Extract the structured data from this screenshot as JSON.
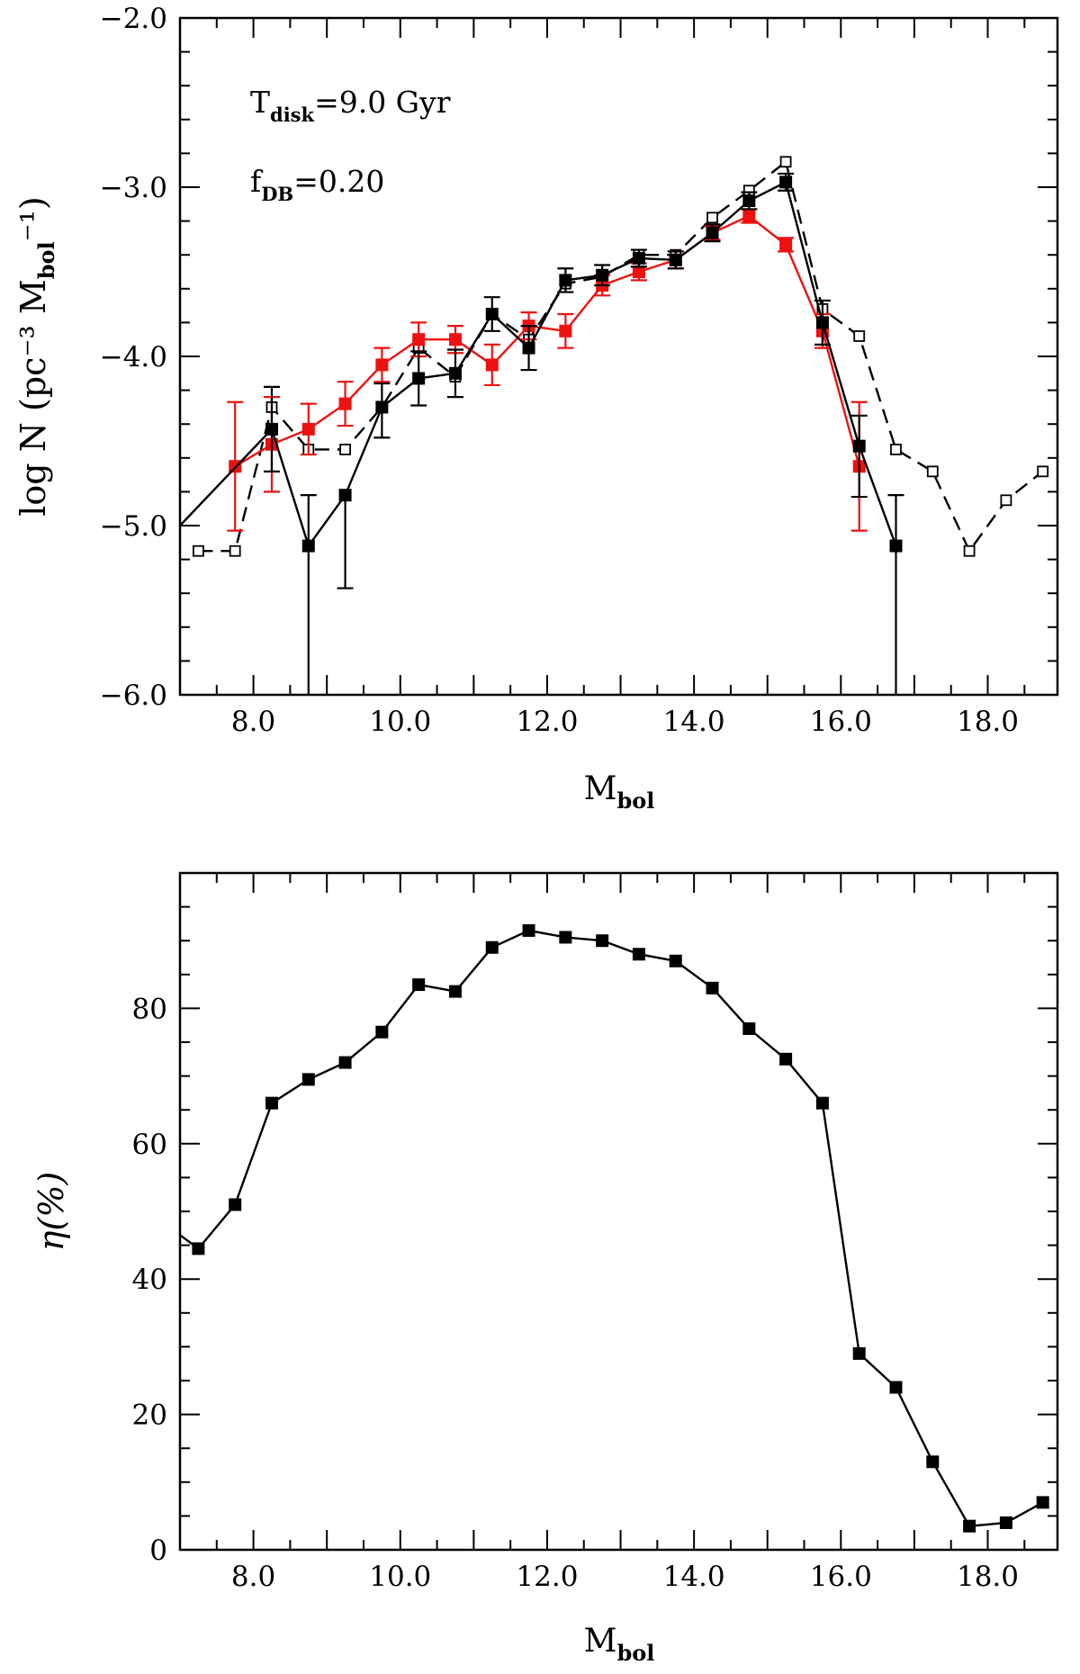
{
  "chart_data": [
    {
      "type": "line",
      "panel": "top",
      "xlabel": "M",
      "xlabel_sub": "bol",
      "ylabel": "log N (pc⁻³ M",
      "ylabel_sub": "bol",
      "ylabel_tail": "⁻¹)",
      "xlim": [
        7.0,
        18.95
      ],
      "ylim": [
        -6.0,
        -2.0
      ],
      "xticks": [
        8.0,
        10.0,
        12.0,
        14.0,
        16.0,
        18.0
      ],
      "xtick_labels": [
        "8.0",
        "10.0",
        "12.0",
        "14.0",
        "16.0",
        "18.0"
      ],
      "yticks": [
        -6.0,
        -5.0,
        -4.0,
        -3.0,
        -2.0
      ],
      "ytick_labels": [
        "−6.0",
        "−5.0",
        "−4.0",
        "−3.0",
        "−2.0"
      ],
      "annotations": [
        {
          "text": "T",
          "sub": "disk",
          "tail": "=9.0 Gyr"
        },
        {
          "text": "f",
          "sub": "DB",
          "tail": "=0.20"
        }
      ],
      "series": [
        {
          "name": "open squares (dashed)",
          "style": "dashed-open",
          "color": "#000000",
          "x": [
            7.25,
            7.75,
            8.25,
            8.75,
            9.25,
            9.75,
            10.25,
            10.75,
            11.25,
            11.75,
            12.25,
            12.75,
            13.25,
            13.75,
            14.25,
            14.75,
            15.25,
            15.75,
            16.25,
            16.75,
            17.25,
            17.75,
            18.25,
            18.75
          ],
          "y": [
            -5.15,
            -5.15,
            -4.3,
            -4.55,
            -4.55,
            -4.3,
            -3.95,
            -4.12,
            -3.75,
            -3.9,
            -3.57,
            -3.53,
            -3.4,
            -3.4,
            -3.18,
            -3.02,
            -2.85,
            -3.72,
            -3.88,
            -4.55,
            -4.68,
            -5.15,
            -4.85,
            -4.68
          ]
        },
        {
          "name": "red squares",
          "style": "solid-filled",
          "color": "#ee1111",
          "x": [
            7.75,
            8.25,
            8.75,
            9.25,
            9.75,
            10.25,
            10.75,
            11.25,
            11.75,
            12.25,
            12.75,
            13.25,
            13.75,
            14.25,
            14.75,
            15.25,
            15.75,
            16.25
          ],
          "y": [
            -4.65,
            -4.52,
            -4.43,
            -4.28,
            -4.05,
            -3.9,
            -3.9,
            -4.05,
            -3.82,
            -3.85,
            -3.58,
            -3.5,
            -3.43,
            -3.27,
            -3.17,
            -3.34,
            -3.85,
            -4.65
          ],
          "err": [
            0.38,
            0.28,
            0.15,
            0.13,
            0.1,
            0.1,
            0.08,
            0.12,
            0.08,
            0.1,
            0.06,
            0.05,
            0.05,
            0.04,
            0.04,
            0.04,
            0.1,
            0.38
          ]
        },
        {
          "name": "black filled squares",
          "style": "solid-filled",
          "color": "#000000",
          "x": [
            7.0,
            8.25,
            8.75,
            9.25,
            9.75,
            10.25,
            10.75,
            11.25,
            11.75,
            12.25,
            12.75,
            13.25,
            13.75,
            14.25,
            14.75,
            15.25,
            15.75,
            16.25,
            16.75
          ],
          "y": [
            -5.0,
            -4.43,
            -5.12,
            -4.82,
            -4.3,
            -4.13,
            -4.1,
            -3.75,
            -3.95,
            -3.55,
            -3.52,
            -3.42,
            -3.43,
            -3.27,
            -3.08,
            -2.97,
            -3.8,
            -4.53,
            -5.12
          ],
          "err_up": [
            0,
            0.25,
            0.3,
            0.0,
            0.14,
            0.16,
            0.14,
            0.1,
            0.13,
            0.07,
            0.06,
            0.05,
            0.05,
            0.05,
            0.05,
            0.05,
            0.13,
            0.18,
            0.3
          ],
          "err_down": [
            0,
            0.25,
            0.95,
            0.55,
            0.18,
            0.16,
            0.14,
            0.1,
            0.13,
            0.07,
            0.06,
            0.05,
            0.05,
            0.05,
            0.05,
            0.05,
            0.13,
            0.3,
            0.95
          ]
        }
      ]
    },
    {
      "type": "line",
      "panel": "bottom",
      "xlabel": "M",
      "xlabel_sub": "bol",
      "ylabel": "η(%)",
      "xlim": [
        7.0,
        18.95
      ],
      "ylim": [
        0,
        100
      ],
      "xticks": [
        8.0,
        10.0,
        12.0,
        14.0,
        16.0,
        18.0
      ],
      "xtick_labels": [
        "8.0",
        "10.0",
        "12.0",
        "14.0",
        "16.0",
        "18.0"
      ],
      "yticks": [
        0,
        20,
        40,
        60,
        80
      ],
      "ytick_labels": [
        "0",
        "20",
        "40",
        "60",
        "80"
      ],
      "series": [
        {
          "name": "eta",
          "style": "solid-filled",
          "color": "#000000",
          "x": [
            7.0,
            7.25,
            7.75,
            8.25,
            8.75,
            9.25,
            9.75,
            10.25,
            10.75,
            11.25,
            11.75,
            12.25,
            12.75,
            13.25,
            13.75,
            14.25,
            14.75,
            15.25,
            15.75,
            16.25,
            16.75,
            17.25,
            17.75,
            18.25,
            18.75
          ],
          "y": [
            46.5,
            44.5,
            51,
            66,
            69.5,
            72,
            76.5,
            83.5,
            82.5,
            89,
            91.5,
            90.5,
            90,
            88,
            87,
            83,
            77,
            72.5,
            66,
            29,
            24,
            13,
            3.5,
            4,
            7
          ],
          "marker": [
            false,
            true,
            true,
            true,
            true,
            true,
            true,
            true,
            true,
            true,
            true,
            true,
            true,
            true,
            true,
            true,
            true,
            true,
            true,
            true,
            true,
            true,
            true,
            true,
            true
          ]
        }
      ]
    }
  ]
}
